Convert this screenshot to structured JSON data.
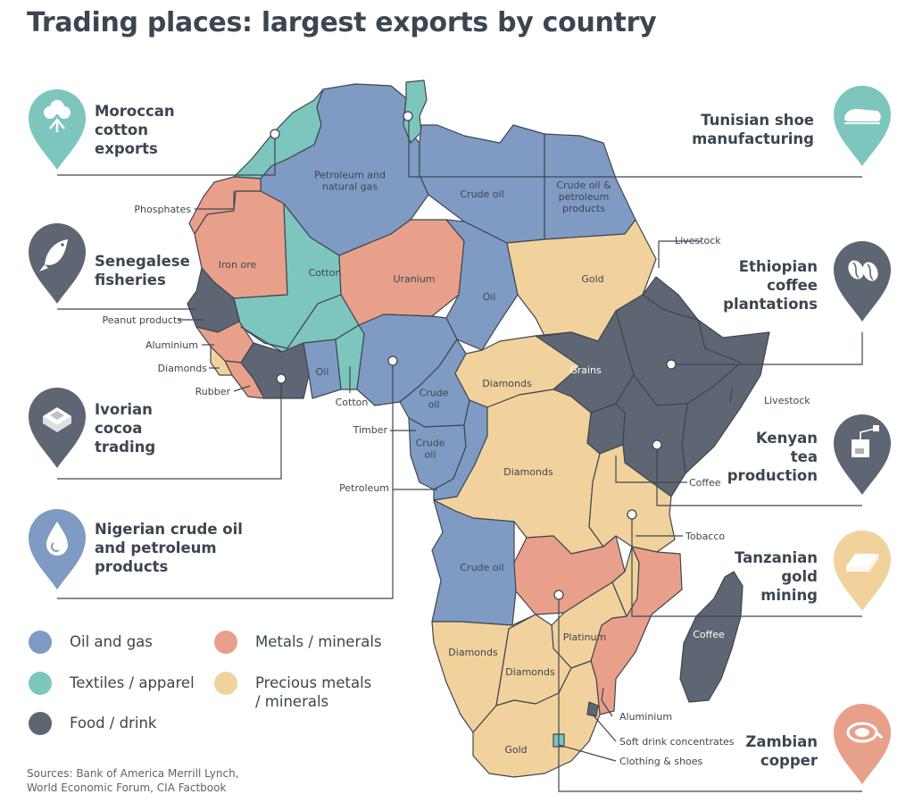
{
  "title": "Trading places: largest exports by country",
  "colors": {
    "oil": "#7f9bc3",
    "textiles": "#7dc6bd",
    "food": "#5d6672",
    "metals": "#e9a08a",
    "precious": "#f1d29d",
    "border": "#3e4650",
    "pin_oil": "#7f9bc3",
    "pin_textiles": "#7dc6bd",
    "pin_food": "#5d6672",
    "pin_precious": "#f1d29d",
    "pin_metals": "#e9a08a"
  },
  "callouts": {
    "moroccan": "Moroccan\ncotton\nexports",
    "senegalese": "Senegalese\nfisheries",
    "ivorian": "Ivorian\ncocoa\ntrading",
    "nigerian": "Nigerian crude oil\nand petroleum\nproducts",
    "tunisian": "Tunisian shoe\nmanufacturing",
    "ethiopian": "Ethiopian\ncoffee\nplantations",
    "kenyan": "Kenyan\ntea\nproduction",
    "tanzanian": "Tanzanian\ngold\nmining",
    "zambian": "Zambian\ncopper"
  },
  "icons": {
    "moroccan": "cotton-plant-icon",
    "senegalese": "fish-icon",
    "ivorian": "cocoa-block-icon",
    "nigerian": "oil-drop-icon",
    "tunisian": "shoe-icon",
    "ethiopian": "coffee-beans-icon",
    "kenyan": "tea-bag-icon",
    "tanzanian": "gold-bar-icon",
    "zambian": "copper-coil-icon"
  },
  "legend": {
    "oil": "Oil and gas",
    "textiles": "Textiles / apparel",
    "food": "Food / drink",
    "metals": "Metals / minerals",
    "precious": "Precious metals\n/ minerals"
  },
  "map_labels": {
    "petroleum_gas": "Petroleum and\nnatural gas",
    "crude_oil_libya": "Crude oil",
    "egypt": "Crude oil &\npetroleum\nproducts",
    "iron_ore": "Iron ore",
    "cotton_mali": "Cotton",
    "uranium": "Uranium",
    "oil_chad": "Oil",
    "gold_sudan": "Gold",
    "grains": "Grains",
    "oil_ghana": "Oil",
    "crude_oil_cameroon": "Crude\noil",
    "crude_oil_gabon": "Crude\noil",
    "diamonds_car": "Diamonds",
    "diamonds_drc": "Diamonds",
    "crude_oil_angola": "Crude oil",
    "diamonds_namibia": "Diamonds",
    "diamonds_botswana": "Diamonds",
    "platinum": "Platinum",
    "gold_sa": "Gold",
    "coffee_madagascar": "Coffee"
  },
  "side_labels": {
    "phosphates": "Phosphates",
    "peanut": "Peanut products",
    "aluminium_guinea": "Aluminium",
    "diamonds_sl": "Diamonds",
    "rubber": "Rubber",
    "cotton_benin": "Cotton",
    "timber": "Timber",
    "petroleum": "Petroleum",
    "livestock_eritrea": "Livestock",
    "livestock_somalia": "Livestock",
    "coffee_uganda": "Coffee",
    "tobacco": "Tobacco",
    "aluminium_moz": "Aluminium",
    "soft_drink": "Soft drink concentrates",
    "clothing": "Clothing & shoes"
  },
  "sources": "Sources: Bank of America Merrill Lynch,\nWorld Economic Forum, CIA Factbook"
}
